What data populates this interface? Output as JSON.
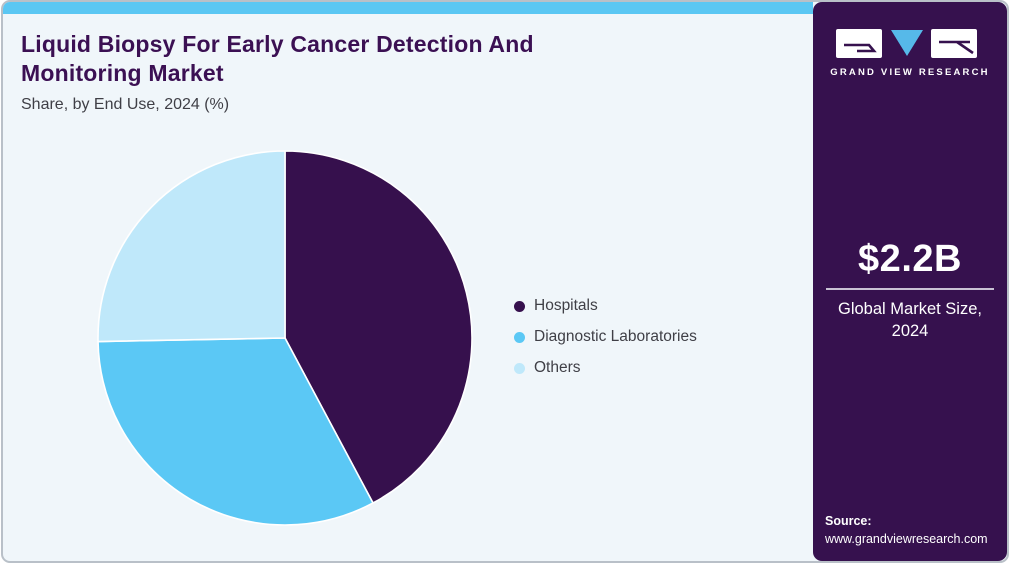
{
  "header": {
    "title": "Liquid Biopsy For Early Cancer Detection And Monitoring Market",
    "subtitle": "Share, by End Use, 2024 (%)"
  },
  "chart_data": {
    "type": "pie",
    "title": "Liquid Biopsy For Early Cancer Detection And Monitoring Market",
    "subtitle": "Share, by End Use, 2024 (%)",
    "unit": "%",
    "start_angle_deg": 0,
    "direction": "clockwise",
    "legend_position": "right",
    "data_labels_shown": false,
    "slices": [
      {
        "label": "Hospitals",
        "value": 42.2,
        "color": "#36104d"
      },
      {
        "label": "Diagnostic Laboratories",
        "value": 32.5,
        "color": "#5bc8f5"
      },
      {
        "label": "Others",
        "value": 25.3,
        "color": "#bfe8fa"
      }
    ]
  },
  "sidebar": {
    "brand": "GRAND VIEW RESEARCH",
    "market_size_value": "$2.2B",
    "market_size_label": "Global Market Size, 2024",
    "source_label": "Source:",
    "source_url": "www.grandviewresearch.com"
  },
  "colors": {
    "accent_bar": "#5bc7f3",
    "sidebar_bg": "#36114e",
    "title_text": "#3b1053",
    "body_text": "#3f3f46",
    "card_bg": "#f0f6fa",
    "card_border": "#b9c0c8",
    "logo_triangle": "#56b9e9",
    "divider": "#c9c2d4"
  }
}
